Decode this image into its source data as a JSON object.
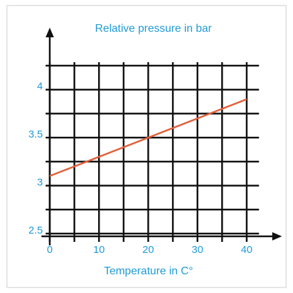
{
  "chart_data": {
    "type": "line",
    "title": "Relative pressure in bar",
    "x_label": "Temperature in C°",
    "x": [
      0,
      40
    ],
    "series": [
      {
        "name": "Relative pressure",
        "color": "#e2603c",
        "values": [
          3.1,
          3.9
        ]
      }
    ],
    "xlim": [
      0,
      42.5
    ],
    "ylim": [
      2.5,
      4.5
    ],
    "xticks": [
      0,
      10,
      20,
      30,
      40
    ],
    "yticks": [
      2.5,
      3,
      3.5,
      4
    ],
    "x_grid": [
      0,
      5,
      10,
      15,
      20,
      25,
      30,
      35,
      40
    ],
    "y_grid": [
      2.5,
      2.75,
      3,
      3.25,
      3.5,
      3.75,
      4,
      4.25
    ],
    "grid": true
  }
}
